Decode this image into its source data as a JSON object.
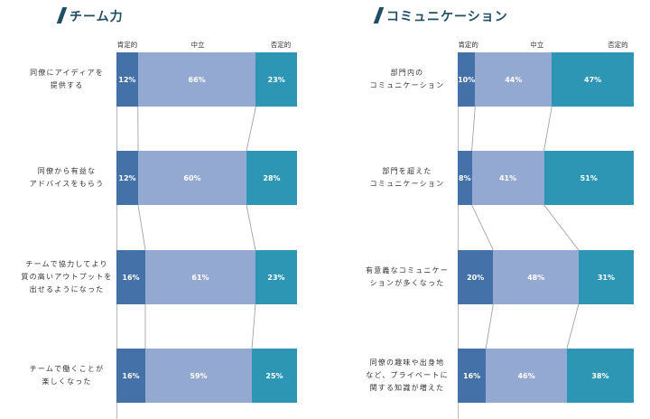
{
  "legend_headers": [
    "肯定的",
    "中立",
    "否定的"
  ],
  "colors": {
    "positive": "#4472a8",
    "neutral": "#94a9d2",
    "negative": "#2e96b5",
    "title": "#1f4d63"
  },
  "chart_data": [
    {
      "type": "bar",
      "stacked": "100%",
      "title": "チーム力",
      "categories": [
        [
          "同僚にアイディアを",
          "提供する"
        ],
        [
          "同僚から有益な",
          "アドバイスをもらう"
        ],
        [
          "チームで協力してより",
          "質の高いアウトプットを",
          "出せるようになった"
        ],
        [
          "チームで働くことが",
          "楽しくなった"
        ]
      ],
      "series": [
        {
          "name": "肯定的",
          "values": [
            12,
            12,
            16,
            16
          ]
        },
        {
          "name": "中立",
          "values": [
            66,
            60,
            61,
            59
          ]
        },
        {
          "name": "否定的",
          "values": [
            23,
            28,
            23,
            25
          ]
        }
      ]
    },
    {
      "type": "bar",
      "stacked": "100%",
      "title": "コミュニケーション",
      "categories": [
        [
          "部門内の",
          "コミュニケーション"
        ],
        [
          "部門を超えた",
          "コミュニケーション"
        ],
        [
          "有意義なコミュニケー",
          "ションが多くなった"
        ],
        [
          "同僚の趣味や出身地",
          "など、プライベートに",
          "関する知識が増えた"
        ]
      ],
      "series": [
        {
          "name": "肯定的",
          "values": [
            10,
            8,
            20,
            16
          ]
        },
        {
          "name": "中立",
          "values": [
            44,
            41,
            48,
            46
          ]
        },
        {
          "name": "否定的",
          "values": [
            47,
            51,
            31,
            38
          ]
        }
      ]
    }
  ]
}
